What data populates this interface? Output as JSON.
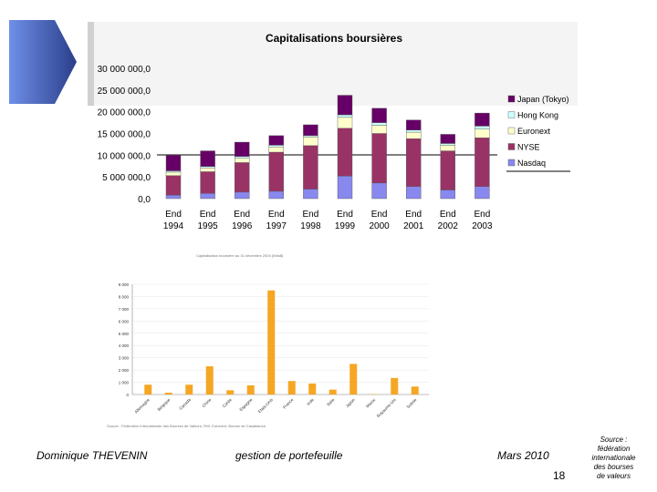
{
  "chart_data": [
    {
      "type": "bar",
      "stacked": true,
      "title": "Capitalisations boursières",
      "categories": [
        {
          "line1": "End",
          "line2": "1994"
        },
        {
          "line1": "End",
          "line2": "1995"
        },
        {
          "line1": "End",
          "line2": "1996"
        },
        {
          "line1": "End",
          "line2": "1997"
        },
        {
          "line1": "End",
          "line2": "1998"
        },
        {
          "line1": "End",
          "line2": "1999"
        },
        {
          "line1": "End",
          "line2": "2000"
        },
        {
          "line1": "End",
          "line2": "2001"
        },
        {
          "line1": "End",
          "line2": "2002"
        },
        {
          "line1": "End",
          "line2": "2003"
        }
      ],
      "yticks": [
        "30 000 000,0",
        "25 000 000,0",
        "20 000 000,0",
        "15 000 000,0",
        "10 000 000,0",
        "5 000 000,0",
        "0,0"
      ],
      "ylim": [
        0,
        30000000
      ],
      "legend_position": "right",
      "series": [
        {
          "name": "Nasdaq",
          "color": "#8888ee",
          "values": [
            800000,
            1200000,
            1500000,
            1700000,
            2200000,
            5200000,
            3600000,
            2800000,
            2000000,
            2800000
          ]
        },
        {
          "name": "NYSE",
          "color": "#993366",
          "values": [
            4500000,
            5000000,
            6800000,
            9000000,
            10000000,
            11000000,
            11400000,
            11000000,
            9000000,
            11200000
          ]
        },
        {
          "name": "Euronext",
          "color": "#ffffcc",
          "values": [
            800000,
            900000,
            1000000,
            1200000,
            2000000,
            2500000,
            1900000,
            1500000,
            1300000,
            2000000
          ]
        },
        {
          "name": "Hong Kong",
          "color": "#ccffff",
          "values": [
            300000,
            300000,
            400000,
            400000,
            300000,
            600000,
            600000,
            500000,
            400000,
            700000
          ]
        },
        {
          "name": "Japan (Tokyo)",
          "color": "#660066",
          "values": [
            3600000,
            3600000,
            3300000,
            2200000,
            2500000,
            4500000,
            3300000,
            2300000,
            2100000,
            3000000
          ]
        }
      ]
    },
    {
      "type": "bar",
      "color": "#f5a623",
      "caption": "Capitalisation boursière au 31 décembre 2004 (Mds$)",
      "source": "Source : Fédération Internationale des Bourses de Valeurs, FMI, Euronext, Bourse de Casablanca",
      "yticks": [
        "9 000",
        "8 000",
        "7 000",
        "6 000",
        "5 000",
        "4 000",
        "3 000",
        "2 000",
        "1 000",
        "0"
      ],
      "ylim": [
        0,
        9000
      ],
      "categories": [
        "Allemagne",
        "Belgique",
        "Canada",
        "Chine",
        "Corée",
        "Espagne",
        "Etats-Unis",
        "France",
        "Inde",
        "Italie",
        "Japon",
        "Maroc",
        "Royaume-Uni",
        "Suisse"
      ],
      "values": [
        800,
        150,
        800,
        2300,
        350,
        750,
        8500,
        1100,
        900,
        400,
        2500,
        30,
        1350,
        650
      ]
    }
  ],
  "footer": {
    "author": "Dominique THEVENIN",
    "subject": "gestion de portefeuille",
    "date": "Mars 2010",
    "page_number": "18",
    "source_lines": [
      "Source :",
      "fédération",
      "internationale",
      "des bourses",
      "de valeurs"
    ]
  }
}
